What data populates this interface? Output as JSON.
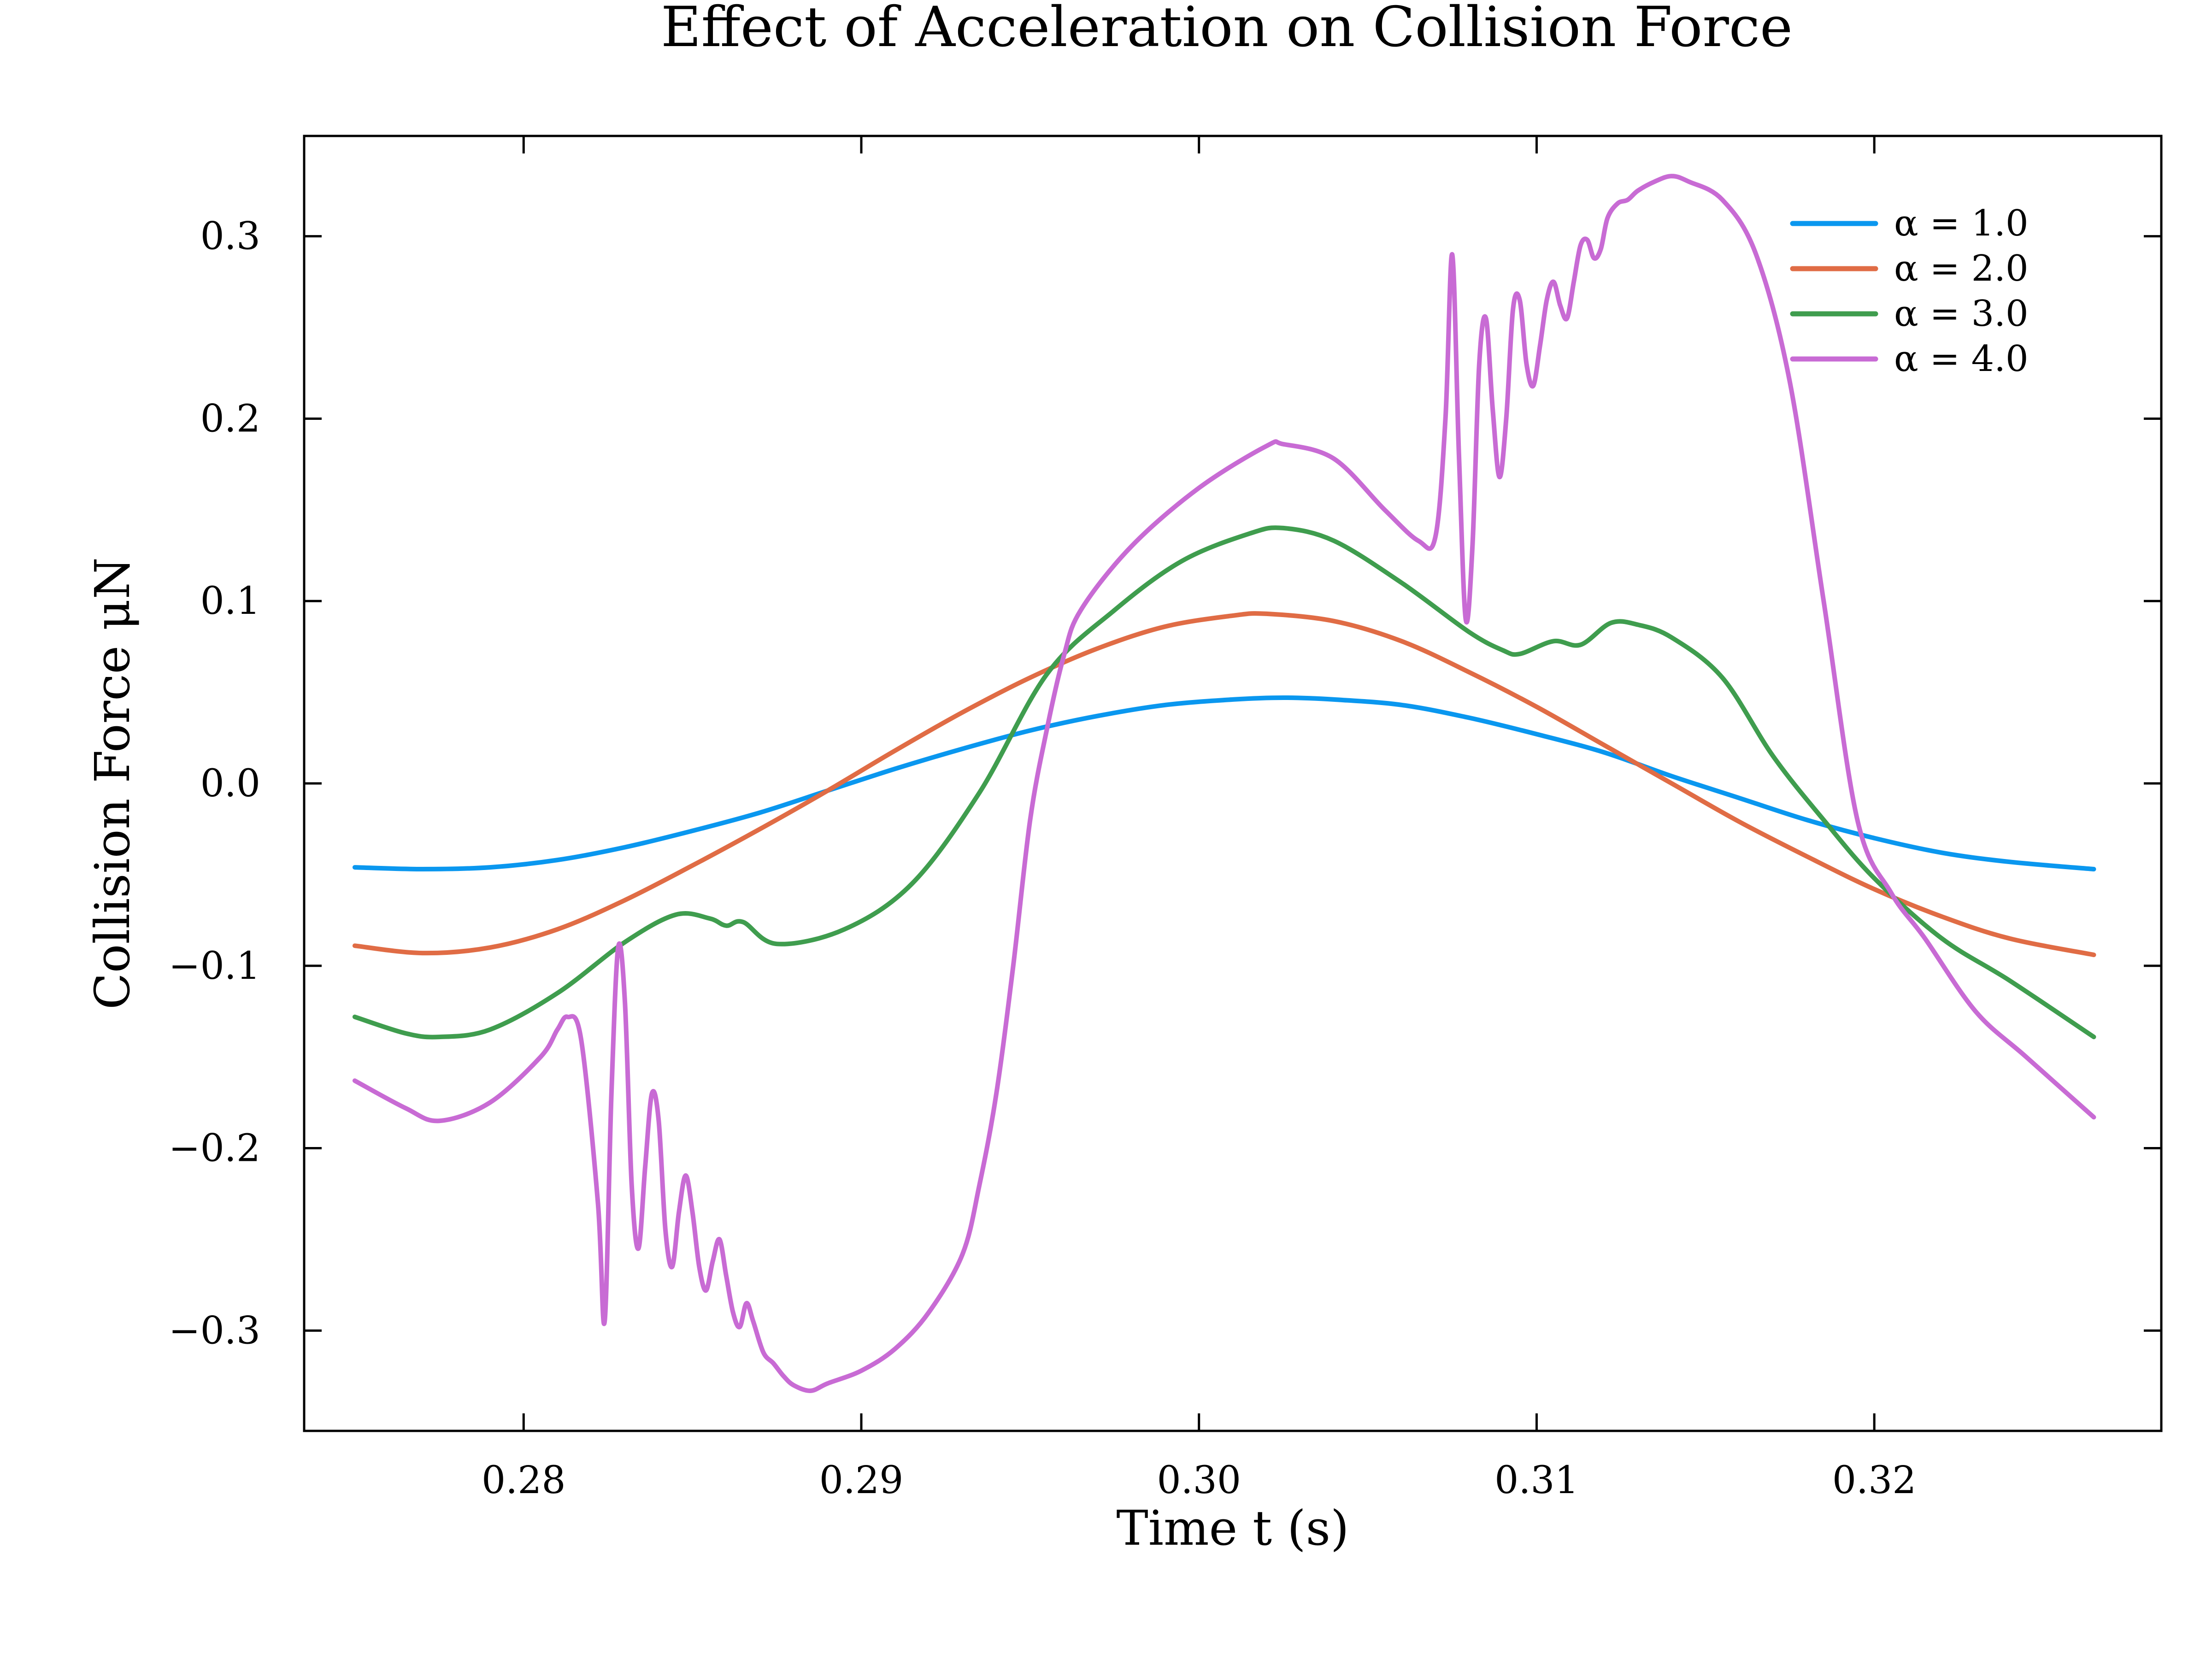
{
  "chart_data": {
    "type": "line",
    "title": "Effect of Acceleration on Collision Force",
    "xlabel": "Time t (s)",
    "ylabel": "Collision Force μN",
    "xlim": [
      0.2735,
      0.3285
    ],
    "ylim": [
      -0.355,
      0.355
    ],
    "xticks": [
      0.28,
      0.29,
      0.3,
      0.31,
      0.32
    ],
    "xtick_labels": [
      "0.28",
      "0.29",
      "0.30",
      "0.31",
      "0.32"
    ],
    "yticks": [
      -0.3,
      -0.2,
      -0.1,
      0.0,
      0.1,
      0.2,
      0.3
    ],
    "ytick_labels": [
      "−0.3",
      "−0.2",
      "−0.1",
      "0.0",
      "0.1",
      "0.2",
      "0.3"
    ],
    "grid": false,
    "legend_position": "top-right",
    "series": [
      {
        "name": "α = 1.0",
        "color": "#0a97ef",
        "points": [
          [
            0.275,
            -0.046
          ],
          [
            0.277,
            -0.047
          ],
          [
            0.279,
            -0.046
          ],
          [
            0.281,
            -0.042
          ],
          [
            0.283,
            -0.035
          ],
          [
            0.285,
            -0.026
          ],
          [
            0.287,
            -0.016
          ],
          [
            0.289,
            -0.004
          ],
          [
            0.291,
            0.008
          ],
          [
            0.293,
            0.019
          ],
          [
            0.295,
            0.029
          ],
          [
            0.297,
            0.037
          ],
          [
            0.299,
            0.043
          ],
          [
            0.301,
            0.046
          ],
          [
            0.3025,
            0.047
          ],
          [
            0.304,
            0.046
          ],
          [
            0.306,
            0.043
          ],
          [
            0.308,
            0.036
          ],
          [
            0.31,
            0.027
          ],
          [
            0.312,
            0.017
          ],
          [
            0.314,
            0.004
          ],
          [
            0.316,
            -0.008
          ],
          [
            0.318,
            -0.02
          ],
          [
            0.32,
            -0.03
          ],
          [
            0.322,
            -0.038
          ],
          [
            0.324,
            -0.043
          ],
          [
            0.3265,
            -0.047
          ]
        ]
      },
      {
        "name": "α = 2.0",
        "color": "#e06c45",
        "points": [
          [
            0.275,
            -0.089
          ],
          [
            0.277,
            -0.093
          ],
          [
            0.279,
            -0.09
          ],
          [
            0.281,
            -0.08
          ],
          [
            0.283,
            -0.064
          ],
          [
            0.285,
            -0.045
          ],
          [
            0.287,
            -0.025
          ],
          [
            0.289,
            -0.004
          ],
          [
            0.291,
            0.018
          ],
          [
            0.293,
            0.039
          ],
          [
            0.295,
            0.058
          ],
          [
            0.297,
            0.074
          ],
          [
            0.299,
            0.086
          ],
          [
            0.301,
            0.092
          ],
          [
            0.302,
            0.093
          ],
          [
            0.304,
            0.089
          ],
          [
            0.306,
            0.078
          ],
          [
            0.308,
            0.061
          ],
          [
            0.31,
            0.042
          ],
          [
            0.312,
            0.021
          ],
          [
            0.314,
            0.0
          ],
          [
            0.316,
            -0.021
          ],
          [
            0.318,
            -0.04
          ],
          [
            0.32,
            -0.058
          ],
          [
            0.322,
            -0.073
          ],
          [
            0.324,
            -0.085
          ],
          [
            0.3265,
            -0.094
          ]
        ]
      },
      {
        "name": "α = 3.0",
        "color": "#3f9d4e",
        "points": [
          [
            0.275,
            -0.128
          ],
          [
            0.2765,
            -0.137
          ],
          [
            0.2775,
            -0.139
          ],
          [
            0.279,
            -0.135
          ],
          [
            0.281,
            -0.115
          ],
          [
            0.283,
            -0.087
          ],
          [
            0.2845,
            -0.072
          ],
          [
            0.2855,
            -0.074
          ],
          [
            0.286,
            -0.078
          ],
          [
            0.2865,
            -0.076
          ],
          [
            0.2875,
            -0.088
          ],
          [
            0.2895,
            -0.08
          ],
          [
            0.2915,
            -0.055
          ],
          [
            0.2935,
            -0.005
          ],
          [
            0.2955,
            0.06
          ],
          [
            0.2975,
            0.095
          ],
          [
            0.2995,
            0.122
          ],
          [
            0.3015,
            0.137
          ],
          [
            0.3025,
            0.14
          ],
          [
            0.304,
            0.133
          ],
          [
            0.306,
            0.11
          ],
          [
            0.308,
            0.083
          ],
          [
            0.309,
            0.073
          ],
          [
            0.3095,
            0.071
          ],
          [
            0.3105,
            0.078
          ],
          [
            0.3113,
            0.076
          ],
          [
            0.3122,
            0.088
          ],
          [
            0.313,
            0.087
          ],
          [
            0.314,
            0.08
          ],
          [
            0.3155,
            0.058
          ],
          [
            0.317,
            0.015
          ],
          [
            0.3185,
            -0.02
          ],
          [
            0.32,
            -0.052
          ],
          [
            0.322,
            -0.085
          ],
          [
            0.324,
            -0.108
          ],
          [
            0.3265,
            -0.139
          ]
        ]
      },
      {
        "name": "α = 4.0",
        "color": "#c86bd4",
        "points": [
          [
            0.275,
            -0.163
          ],
          [
            0.2765,
            -0.178
          ],
          [
            0.2775,
            -0.185
          ],
          [
            0.279,
            -0.175
          ],
          [
            0.2805,
            -0.15
          ],
          [
            0.281,
            -0.135
          ],
          [
            0.2813,
            -0.128
          ],
          [
            0.2817,
            -0.14
          ],
          [
            0.2822,
            -0.23
          ],
          [
            0.2824,
            -0.295
          ],
          [
            0.2826,
            -0.17
          ],
          [
            0.2828,
            -0.09
          ],
          [
            0.283,
            -0.12
          ],
          [
            0.2832,
            -0.22
          ],
          [
            0.2834,
            -0.255
          ],
          [
            0.2836,
            -0.21
          ],
          [
            0.2838,
            -0.17
          ],
          [
            0.284,
            -0.185
          ],
          [
            0.2842,
            -0.245
          ],
          [
            0.2844,
            -0.265
          ],
          [
            0.2846,
            -0.235
          ],
          [
            0.2848,
            -0.215
          ],
          [
            0.285,
            -0.235
          ],
          [
            0.2852,
            -0.265
          ],
          [
            0.2854,
            -0.278
          ],
          [
            0.2856,
            -0.262
          ],
          [
            0.2858,
            -0.25
          ],
          [
            0.286,
            -0.27
          ],
          [
            0.2862,
            -0.29
          ],
          [
            0.2864,
            -0.298
          ],
          [
            0.2866,
            -0.285
          ],
          [
            0.2868,
            -0.295
          ],
          [
            0.2871,
            -0.312
          ],
          [
            0.2874,
            -0.318
          ],
          [
            0.2877,
            -0.325
          ],
          [
            0.288,
            -0.33
          ],
          [
            0.2885,
            -0.333
          ],
          [
            0.289,
            -0.329
          ],
          [
            0.29,
            -0.322
          ],
          [
            0.291,
            -0.31
          ],
          [
            0.292,
            -0.29
          ],
          [
            0.293,
            -0.258
          ],
          [
            0.2935,
            -0.22
          ],
          [
            0.294,
            -0.17
          ],
          [
            0.2945,
            -0.1
          ],
          [
            0.295,
            -0.02
          ],
          [
            0.2955,
            0.03
          ],
          [
            0.296,
            0.07
          ],
          [
            0.2965,
            0.095
          ],
          [
            0.298,
            0.13
          ],
          [
            0.3,
            0.162
          ],
          [
            0.302,
            0.185
          ],
          [
            0.3025,
            0.186
          ],
          [
            0.304,
            0.178
          ],
          [
            0.3055,
            0.15
          ],
          [
            0.3065,
            0.133
          ],
          [
            0.307,
            0.135
          ],
          [
            0.3073,
            0.2
          ],
          [
            0.3075,
            0.29
          ],
          [
            0.3077,
            0.18
          ],
          [
            0.3079,
            0.09
          ],
          [
            0.3081,
            0.13
          ],
          [
            0.3083,
            0.23
          ],
          [
            0.3085,
            0.255
          ],
          [
            0.3087,
            0.205
          ],
          [
            0.3089,
            0.168
          ],
          [
            0.3091,
            0.2
          ],
          [
            0.3093,
            0.26
          ],
          [
            0.3095,
            0.265
          ],
          [
            0.3097,
            0.23
          ],
          [
            0.3099,
            0.218
          ],
          [
            0.3101,
            0.24
          ],
          [
            0.3103,
            0.265
          ],
          [
            0.3105,
            0.275
          ],
          [
            0.3107,
            0.262
          ],
          [
            0.3109,
            0.255
          ],
          [
            0.3111,
            0.275
          ],
          [
            0.3113,
            0.295
          ],
          [
            0.3115,
            0.298
          ],
          [
            0.3117,
            0.288
          ],
          [
            0.3119,
            0.293
          ],
          [
            0.3121,
            0.31
          ],
          [
            0.3124,
            0.318
          ],
          [
            0.3127,
            0.32
          ],
          [
            0.313,
            0.325
          ],
          [
            0.3135,
            0.33
          ],
          [
            0.314,
            0.333
          ],
          [
            0.3145,
            0.33
          ],
          [
            0.3155,
            0.32
          ],
          [
            0.3165,
            0.29
          ],
          [
            0.3175,
            0.22
          ],
          [
            0.3185,
            0.1
          ],
          [
            0.3195,
            -0.02
          ],
          [
            0.3205,
            -0.06
          ],
          [
            0.3215,
            -0.085
          ],
          [
            0.323,
            -0.125
          ],
          [
            0.3245,
            -0.15
          ],
          [
            0.3265,
            -0.183
          ]
        ]
      }
    ]
  }
}
